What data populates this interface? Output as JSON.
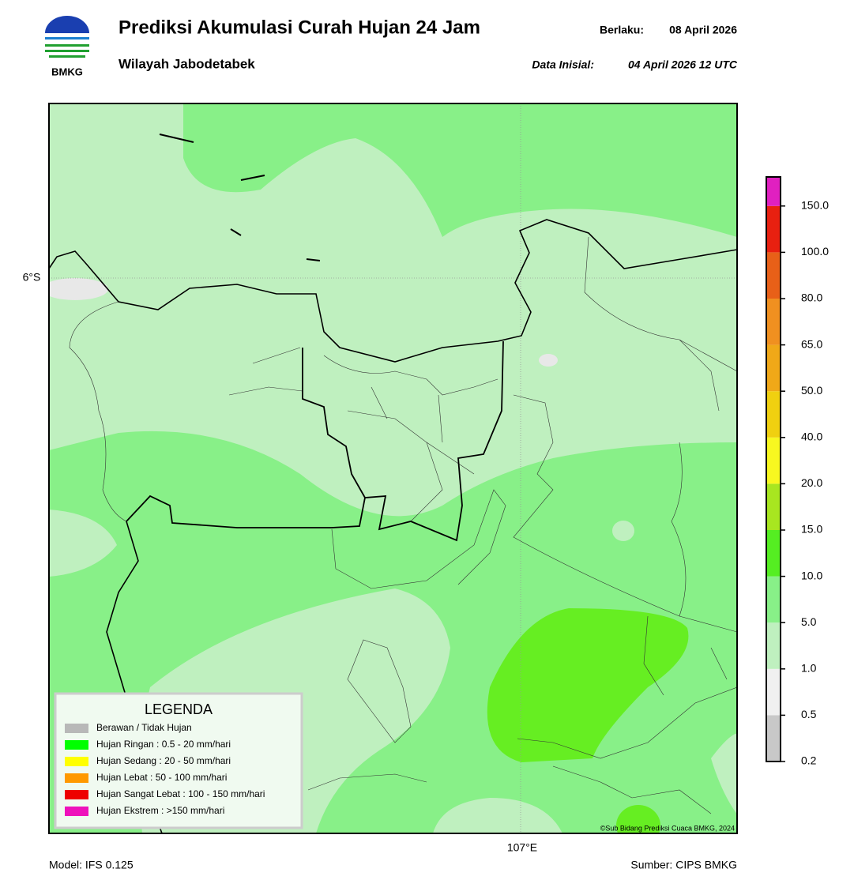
{
  "header": {
    "logo_text": "BMKG",
    "title": "Prediksi Akumulasi Curah Hujan 24 Jam",
    "subtitle": "Wilayah Jabodetabek",
    "valid_label": "Berlaku:",
    "valid_date": "08 April 2026",
    "init_label": "Data Inisial:",
    "init_date": "04 April 2026 12 UTC"
  },
  "map": {
    "lat_label": "6°S",
    "lon_label": "107°E",
    "copyright": "©Sub Bidang Prediksi Cuaca BMKG, 2024"
  },
  "colorbar": {
    "ticks": [
      0.2,
      0.5,
      {
        "value": 1,
        "label": "1.0"
      },
      {
        "value": 5,
        "label": "5.0"
      },
      {
        "value": 10,
        "label": "10.0"
      },
      {
        "value": 15,
        "label": "15.0"
      },
      {
        "value": 20,
        "label": "20.0"
      },
      {
        "value": 40,
        "label": "40.0"
      },
      {
        "value": 50,
        "label": "50.0"
      },
      {
        "value": 65,
        "label": "65.0"
      },
      {
        "value": 80,
        "label": "80.0"
      },
      {
        "value": 100,
        "label": "100.0"
      },
      {
        "value": 150,
        "label": "150.0"
      }
    ],
    "colors": [
      "#c8c8c8",
      "#f0f0f0",
      "#bff0bf",
      "#88f088",
      "#55ee22",
      "#a8e620",
      "#f8f820",
      "#f0d010",
      "#f0a818",
      "#f09020",
      "#e86018",
      "#e82010",
      "#e020c0"
    ]
  },
  "legend": {
    "title": "LEGENDA",
    "items": [
      {
        "label": "Berawan / Tidak Hujan",
        "color": "#b8b8b8"
      },
      {
        "label": "Hujan Ringan : 0.5 - 20 mm/hari",
        "color": "#00ff00"
      },
      {
        "label": "Hujan Sedang : 20 - 50 mm/hari",
        "color": "#ffff00"
      },
      {
        "label": "Hujan Lebat : 50 - 100 mm/hari",
        "color": "#ff9900"
      },
      {
        "label": "Hujan Sangat Lebat : 100 - 150 mm/hari",
        "color": "#ee0000"
      },
      {
        "label": "Hujan Ekstrem : >150 mm/hari",
        "color": "#ee11bb"
      }
    ]
  },
  "footer": {
    "model": "Model: IFS 0.125",
    "source": "Sumber: CIPS BMKG"
  }
}
